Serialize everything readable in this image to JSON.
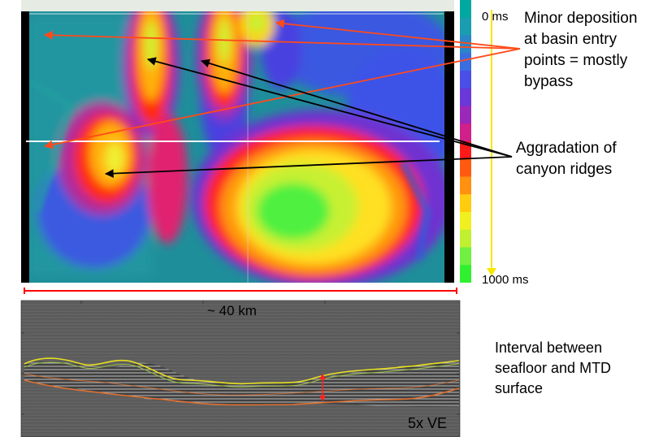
{
  "map": {
    "colorbar_colors": [
      "#00a8a0",
      "#1a9db0",
      "#2a86c8",
      "#3a6ee0",
      "#4b4fe8",
      "#6a38d8",
      "#9a28b8",
      "#d0208a",
      "#ff1a1a",
      "#ff5a10",
      "#ff9010",
      "#ffcc10",
      "#f0f020",
      "#c0f030",
      "#70f040",
      "#30f030"
    ],
    "time_axis": {
      "top_label": "0 ms",
      "bottom_label": "1000 ms",
      "color": "#f7e600"
    },
    "grid_line_color": "#ffffff"
  },
  "annotations": {
    "minor_deposition": "Minor deposition at basin entry points = mostly bypass",
    "aggradation": "Aggradation of canyon ridges",
    "interval": "Interval between seafloor and MTD surface",
    "arrow_colors": {
      "minor": "#ff4a1a",
      "aggradation": "#000000"
    }
  },
  "section": {
    "scale_label": "~ 40 km",
    "ve_label": "5x VE",
    "scale_bar_color": "#ff0000",
    "seafloor_color": "#e8e020",
    "mtd_color": "#e07030",
    "interval_marker_color": "#ff2020"
  }
}
